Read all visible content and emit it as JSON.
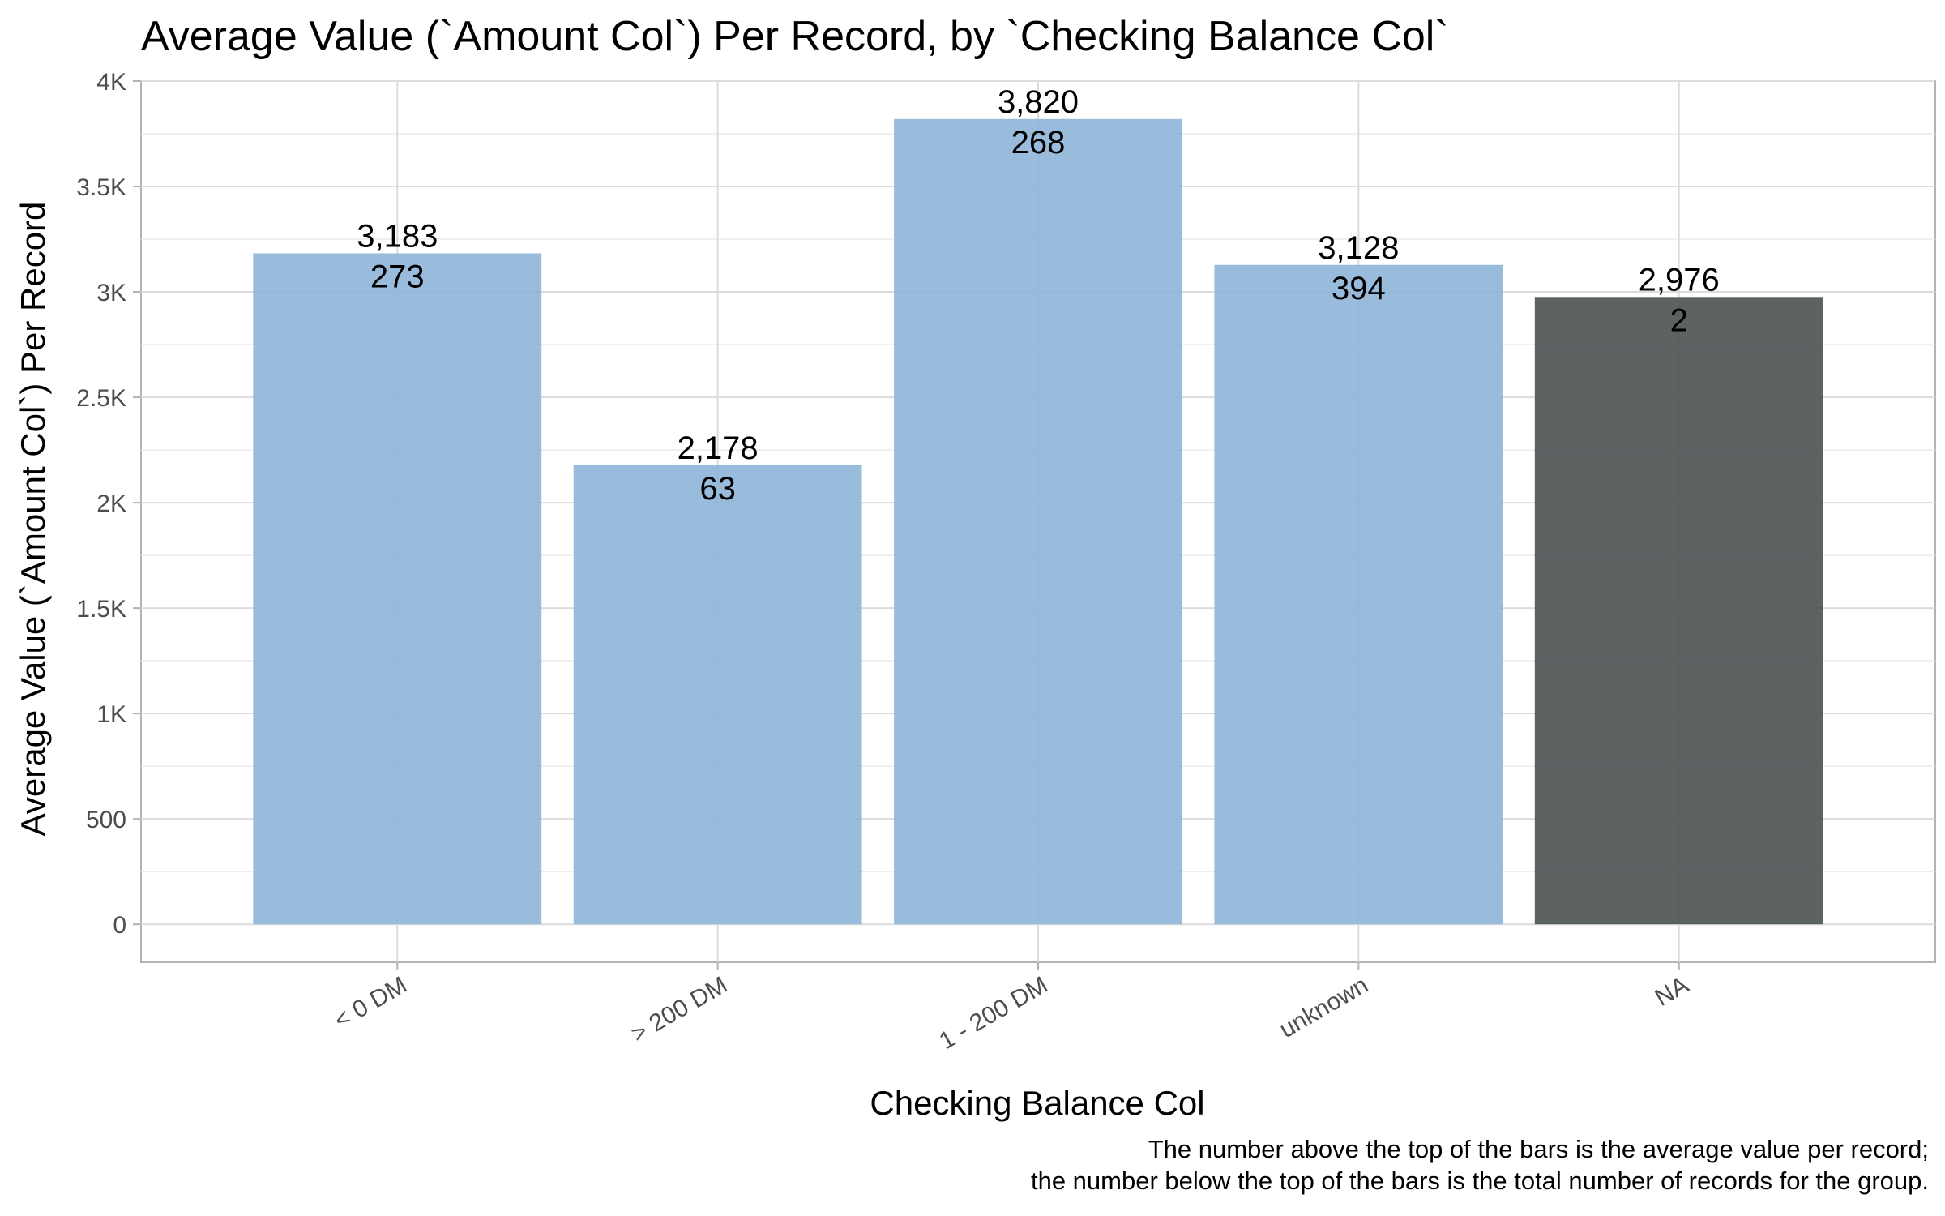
{
  "chart_data": {
    "type": "bar",
    "title": "Average Value (`Amount Col`) Per Record, by `Checking Balance Col`",
    "xlabel": "Checking Balance Col",
    "ylabel": "Average Value (`Amount Col`) Per Record",
    "categories": [
      "< 0 DM",
      "> 200 DM",
      "1 - 200 DM",
      "unknown",
      "NA"
    ],
    "values": [
      3183,
      2178,
      3820,
      3128,
      2976
    ],
    "counts": [
      273,
      63,
      268,
      394,
      2
    ],
    "value_labels": [
      "3,183",
      "2,178",
      "3,820",
      "3,128",
      "2,976"
    ],
    "count_labels": [
      "273",
      "63",
      "268",
      "394",
      "2"
    ],
    "bar_colors": [
      "#8fb5d8",
      "#8fb5d8",
      "#8fb5d8",
      "#8fb5d8",
      "#4b5152"
    ],
    "ylim": [
      -180,
      4000
    ],
    "yticks": [
      0,
      500,
      1000,
      1500,
      2000,
      2500,
      3000,
      3500,
      4000
    ],
    "ytick_labels": [
      "0",
      "500",
      "1K",
      "1.5K",
      "2K",
      "2.5K",
      "3K",
      "3.5K",
      "4K"
    ],
    "grid": true,
    "caption_lines": [
      "The number above the top of the bars is the average value per record;",
      "the number below the top of the bars is the total number of records for the group."
    ]
  }
}
